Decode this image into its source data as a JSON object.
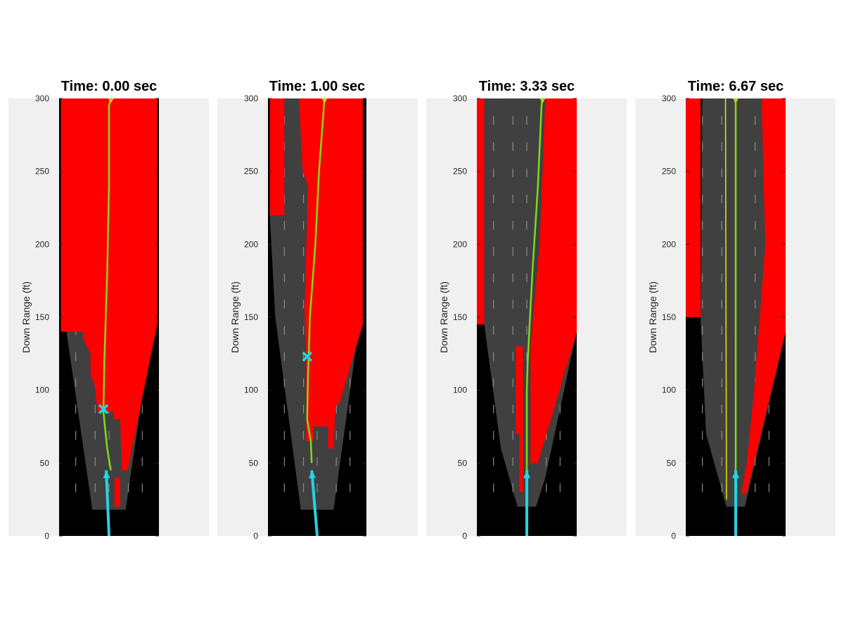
{
  "chart_data": [
    {
      "type": "line",
      "title": "Time: 0.00 sec",
      "ylabel": "Down Range (ft)",
      "ylim": [
        0,
        300
      ],
      "yticks": [
        "0",
        "50",
        "100",
        "150",
        "200",
        "250",
        "300"
      ],
      "colors": {
        "free": "#404040",
        "occupied": "#ff0000",
        "unknown": "#000000",
        "path": "#7fdb1a",
        "ego": "#22d3e6",
        "marker": "#22d3e6"
      },
      "regions": {
        "gray": [
          [
            -0.9,
            18
          ],
          [
            -0.3,
            18
          ],
          [
            0.3,
            18
          ],
          [
            0.9,
            18
          ],
          [
            2.3,
            140
          ],
          [
            2.6,
            300
          ],
          [
            -2.6,
            300
          ],
          [
            -2.3,
            140
          ]
        ],
        "red": [
          [
            -1.1,
            300
          ],
          [
            2.6,
            300
          ],
          [
            2.6,
            145
          ],
          [
            1.0,
            45
          ],
          [
            0.7,
            45
          ],
          [
            0.6,
            80
          ],
          [
            0.25,
            80
          ],
          [
            0.25,
            85
          ],
          [
            -0.6,
            85
          ],
          [
            -0.8,
            105
          ],
          [
            -1.0,
            110
          ],
          [
            -1.0,
            125
          ],
          [
            -1.4,
            135
          ],
          [
            -1.4,
            140
          ],
          [
            -2.6,
            140
          ],
          [
            -2.6,
            300
          ]
        ],
        "red_extra": [
          [
            0.3,
            20
          ],
          [
            0.6,
            20
          ],
          [
            0.6,
            40
          ],
          [
            0.3,
            40
          ]
        ]
      },
      "path": [
        [
          0.1,
          45
        ],
        [
          -0.1,
          60
        ],
        [
          -0.3,
          85
        ],
        [
          -0.25,
          120
        ],
        [
          -0.1,
          180
        ],
        [
          0.0,
          240
        ],
        [
          0.0,
          295
        ],
        [
          0.1,
          300
        ]
      ],
      "ego": [
        [
          0.0,
          0
        ],
        [
          -0.15,
          45
        ]
      ],
      "marker": [
        -0.3,
        87
      ]
    },
    {
      "type": "line",
      "title": "Time: 1.00 sec",
      "ylabel": "Down Range (ft)",
      "ylim": [
        0,
        300
      ],
      "yticks": [
        "0",
        "50",
        "100",
        "150",
        "200",
        "250",
        "300"
      ],
      "colors": {
        "free": "#404040",
        "occupied": "#ff0000",
        "unknown": "#000000",
        "path": "#7fdb1a",
        "ego": "#22d3e6",
        "marker": "#22d3e6"
      },
      "regions": {
        "gray": [
          [
            -0.9,
            18
          ],
          [
            0.3,
            18
          ],
          [
            0.9,
            18
          ],
          [
            2.3,
            145
          ],
          [
            2.5,
            300
          ],
          [
            -2.6,
            300
          ],
          [
            -2.6,
            220
          ],
          [
            -2.3,
            150
          ]
        ],
        "red": [
          [
            -2.6,
            300
          ],
          [
            2.5,
            300
          ],
          [
            2.5,
            145
          ],
          [
            1.2,
            90
          ],
          [
            1.0,
            90
          ],
          [
            0.9,
            60
          ],
          [
            0.6,
            60
          ],
          [
            0.6,
            75
          ],
          [
            -0.6,
            75
          ],
          [
            -0.6,
            125
          ],
          [
            -0.7,
            155
          ],
          [
            -0.5,
            240
          ],
          [
            -0.8,
            250
          ],
          [
            -1.0,
            300
          ]
        ],
        "red_left": [
          [
            -2.6,
            300
          ],
          [
            -1.8,
            300
          ],
          [
            -1.8,
            220
          ],
          [
            -2.6,
            220
          ]
        ],
        "red_low": [
          [
            -0.6,
            75
          ],
          [
            -0.2,
            75
          ],
          [
            -0.2,
            65
          ],
          [
            -0.6,
            65
          ]
        ]
      },
      "path": [
        [
          -0.3,
          50
        ],
        [
          -0.35,
          65
        ],
        [
          -0.55,
          80
        ],
        [
          -0.5,
          110
        ],
        [
          -0.4,
          150
        ],
        [
          -0.1,
          200
        ],
        [
          0.1,
          250
        ],
        [
          0.4,
          300
        ]
      ],
      "ego": [
        [
          0.0,
          0
        ],
        [
          -0.3,
          45
        ]
      ],
      "marker": [
        -0.55,
        123
      ]
    },
    {
      "type": "line",
      "title": "Time: 3.33 sec",
      "ylabel": "Down Range (ft)",
      "ylim": [
        0,
        300
      ],
      "yticks": [
        "0",
        "50",
        "100",
        "150",
        "200",
        "250",
        "300"
      ],
      "colors": {
        "free": "#404040",
        "occupied": "#ff0000",
        "unknown": "#000000",
        "path": "#7fdb1a",
        "ego": "#22d3e6",
        "marker": "#22d3e6"
      },
      "regions": {
        "gray": [
          [
            -0.5,
            20
          ],
          [
            0.5,
            20
          ],
          [
            1.0,
            40
          ],
          [
            2.7,
            140
          ],
          [
            2.7,
            300
          ],
          [
            -2.3,
            300
          ],
          [
            -2.3,
            145
          ],
          [
            -1.4,
            60
          ]
        ],
        "red_left": [
          [
            -2.7,
            300
          ],
          [
            -2.3,
            300
          ],
          [
            -2.3,
            145
          ],
          [
            -2.7,
            145
          ]
        ],
        "red_mid": [
          [
            -0.4,
            30
          ],
          [
            -0.2,
            30
          ],
          [
            -0.2,
            130
          ],
          [
            -0.6,
            130
          ],
          [
            -0.6,
            70
          ],
          [
            -0.4,
            70
          ]
        ],
        "red_right": [
          [
            0.2,
            50
          ],
          [
            0.6,
            50
          ],
          [
            2.7,
            140
          ],
          [
            2.7,
            300
          ],
          [
            1.0,
            300
          ],
          [
            0.7,
            200
          ],
          [
            0.4,
            160
          ],
          [
            0.2,
            130
          ]
        ]
      },
      "path": [
        [
          0.0,
          45
        ],
        [
          0.0,
          100
        ],
        [
          0.05,
          120
        ],
        [
          0.3,
          180
        ],
        [
          0.6,
          240
        ],
        [
          0.8,
          295
        ],
        [
          0.85,
          300
        ]
      ],
      "ego": [
        [
          0.0,
          0
        ],
        [
          0.0,
          45
        ]
      ],
      "marker": null
    },
    {
      "type": "line",
      "title": "Time: 6.67 sec",
      "ylabel": "Down Range (ft)",
      "ylim": [
        0,
        300
      ],
      "yticks": [
        "0",
        "50",
        "100",
        "150",
        "200",
        "250",
        "300"
      ],
      "colors": {
        "free": "#404040",
        "occupied": "#ff0000",
        "unknown": "#000000",
        "path": "#7fdb1a",
        "ego": "#22d3e6",
        "marker": "#22d3e6"
      },
      "regions": {
        "gray": [
          [
            -0.5,
            20
          ],
          [
            0.5,
            20
          ],
          [
            2.7,
            140
          ],
          [
            2.7,
            300
          ],
          [
            -1.8,
            300
          ],
          [
            -1.9,
            150
          ],
          [
            -1.6,
            70
          ]
        ],
        "red_left": [
          [
            -2.7,
            300
          ],
          [
            -1.9,
            300
          ],
          [
            -1.9,
            150
          ],
          [
            -2.7,
            150
          ]
        ],
        "red_right": [
          [
            0.3,
            28
          ],
          [
            0.6,
            30
          ],
          [
            2.7,
            140
          ],
          [
            2.7,
            300
          ],
          [
            1.4,
            300
          ],
          [
            1.6,
            200
          ],
          [
            1.0,
            100
          ],
          [
            0.6,
            50
          ]
        ]
      },
      "path": [
        [
          0.0,
          45
        ],
        [
          0.0,
          300
        ]
      ],
      "path2": [
        [
          -0.5,
          25
        ],
        [
          -0.55,
          300
        ]
      ],
      "ego": [
        [
          0.0,
          0
        ],
        [
          0.0,
          45
        ]
      ],
      "marker": null
    }
  ]
}
